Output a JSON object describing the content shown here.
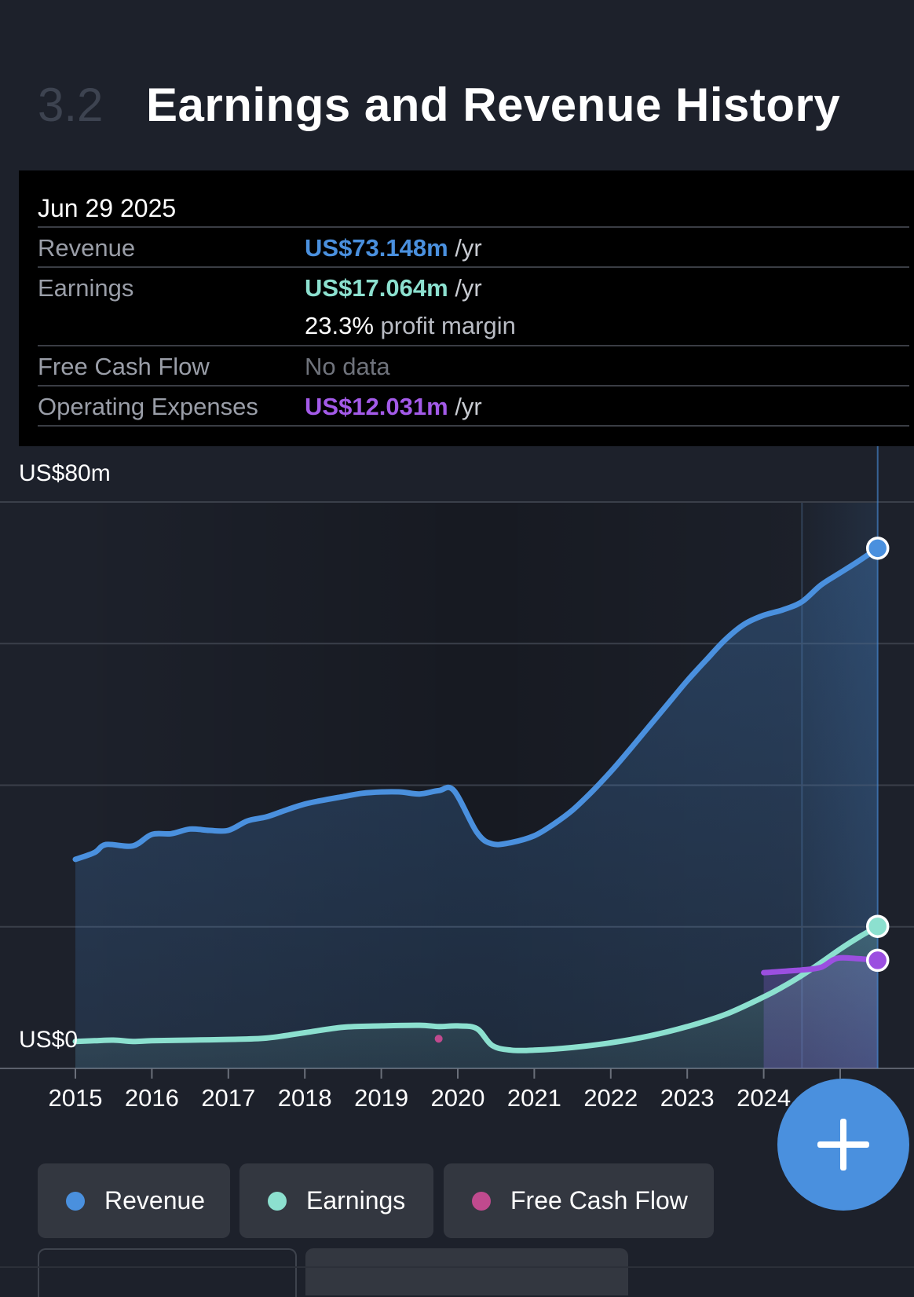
{
  "section": {
    "number": "3.2",
    "title": "Earnings and Revenue History"
  },
  "tooltip": {
    "date": "Jun 29 2025",
    "unit": "/yr",
    "revenue": {
      "label": "Revenue",
      "value": "US$73.148m"
    },
    "earnings": {
      "label": "Earnings",
      "value": "US$17.064m",
      "margin_value": "23.3%",
      "margin_text": "profit margin"
    },
    "fcf": {
      "label": "Free Cash Flow",
      "value": "No data"
    },
    "opex": {
      "label": "Operating Expenses",
      "value": "US$12.031m"
    }
  },
  "legend": [
    {
      "label": "Revenue",
      "color": "#4a90de"
    },
    {
      "label": "Earnings",
      "color": "#8ce0cf"
    },
    {
      "label": "Free Cash Flow",
      "color": "#c04a8e"
    }
  ],
  "fab": {
    "icon": "plus-icon"
  },
  "colors": {
    "revenue": "#4a90de",
    "earnings": "#8ce0cf",
    "fcf": "#c04a8e",
    "opex": "#9b4fe0",
    "background": "#1d212b"
  },
  "chart_data": {
    "type": "area",
    "y_top_label": "US$80m",
    "y_bottom_label": "US$0",
    "ylim": [
      -4,
      80
    ],
    "grid": true,
    "x_ticks": [
      "2015",
      "2016",
      "2017",
      "2018",
      "2019",
      "2020",
      "2021",
      "2022",
      "2023",
      "2024"
    ],
    "series": [
      {
        "name": "Revenue",
        "x": [
          2015.0,
          2015.25,
          2015.4,
          2015.75,
          2016.0,
          2016.25,
          2016.5,
          2016.75,
          2017.0,
          2017.25,
          2017.5,
          2017.75,
          2018.0,
          2018.25,
          2018.5,
          2018.75,
          2019.0,
          2019.25,
          2019.5,
          2019.75,
          2019.95,
          2020.25,
          2020.45,
          2020.7,
          2021.0,
          2021.25,
          2021.5,
          2021.75,
          2022.0,
          2022.25,
          2022.5,
          2022.75,
          2023.0,
          2023.25,
          2023.5,
          2023.75,
          2024.0,
          2024.25,
          2024.5,
          2024.75,
          2025.0,
          2025.25,
          2025.49
        ],
        "values": [
          27.0,
          28.0,
          29.2,
          29.0,
          30.7,
          30.8,
          31.5,
          31.3,
          31.3,
          32.7,
          33.3,
          34.3,
          35.2,
          35.8,
          36.3,
          36.8,
          37.0,
          37.0,
          36.7,
          37.2,
          37.2,
          31.0,
          29.3,
          29.5,
          30.5,
          32.2,
          34.3,
          37.0,
          40.0,
          43.3,
          46.7,
          50.1,
          53.5,
          56.6,
          59.6,
          61.9,
          63.2,
          64.0,
          65.2,
          67.7,
          69.5,
          71.3,
          73.148
        ]
      },
      {
        "name": "Earnings",
        "x": [
          2015.0,
          2015.25,
          2015.5,
          2015.75,
          2016.0,
          2016.5,
          2017.0,
          2017.5,
          2018.0,
          2018.5,
          2019.0,
          2019.5,
          2019.75,
          2020.0,
          2020.25,
          2020.45,
          2020.7,
          2021.0,
          2021.5,
          2022.0,
          2022.5,
          2023.0,
          2023.5,
          2024.0,
          2024.25,
          2024.5,
          2024.75,
          2025.0,
          2025.25,
          2025.49
        ],
        "values": [
          0.0,
          0.1,
          0.2,
          0.0,
          0.1,
          0.2,
          0.3,
          0.5,
          1.3,
          2.1,
          2.3,
          2.4,
          2.2,
          2.3,
          1.9,
          -0.6,
          -1.3,
          -1.3,
          -0.9,
          -0.2,
          0.8,
          2.2,
          4.0,
          6.6,
          8.1,
          9.8,
          11.7,
          13.7,
          15.5,
          17.064
        ]
      },
      {
        "name": "Operating Expenses",
        "x": [
          2024.0,
          2024.5,
          2024.75,
          2024.95,
          2025.2,
          2025.49
        ],
        "values": [
          10.2,
          10.6,
          11.0,
          12.3,
          12.3,
          12.031
        ]
      },
      {
        "name": "Free Cash Flow",
        "x": [
          2019.75
        ],
        "values": [
          0.4
        ]
      }
    ],
    "forecast_from": 2024.5,
    "highlight_x": 2025.49
  }
}
